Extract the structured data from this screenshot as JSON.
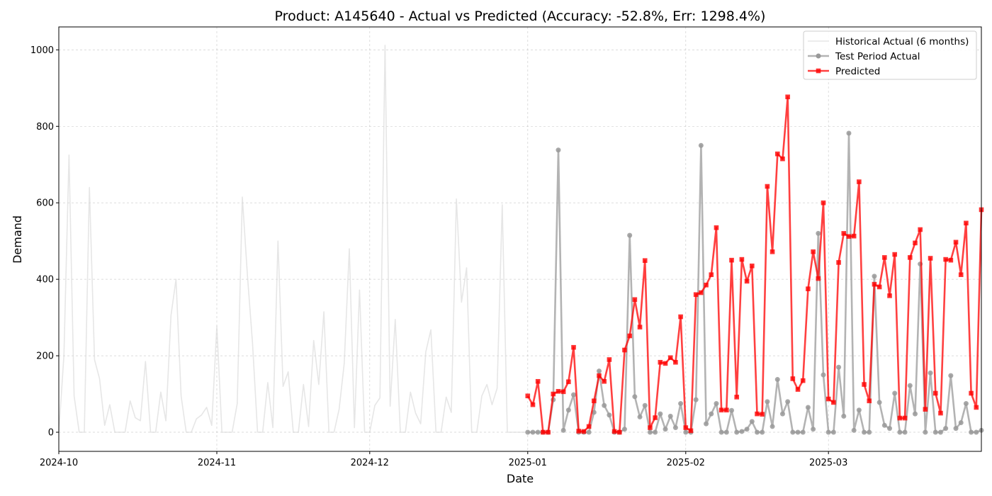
{
  "chart_data": {
    "type": "line",
    "title": "Product: A145640 - Actual vs Predicted (Accuracy: -52.8%, Err: 1298.4%)",
    "xlabel": "Date",
    "ylabel": "Demand",
    "xlim": [
      "2024-10-01",
      "2025-03-31"
    ],
    "ylim": [
      -50,
      1060
    ],
    "x_ticks": [
      "2024-10",
      "2024-11",
      "2024-12",
      "2025-01",
      "2025-02",
      "2025-03"
    ],
    "y_ticks": [
      0,
      200,
      400,
      600,
      800,
      1000
    ],
    "grid": true,
    "legend_position": "top-right",
    "series": [
      {
        "name": "Historical Actual (6 months)",
        "color": "#d9d9d9",
        "marker": "none",
        "start_date": "2024-10-01",
        "values": [
          0,
          200,
          725,
          95,
          0,
          0,
          640,
          190,
          140,
          18,
          72,
          0,
          0,
          0,
          82,
          38,
          30,
          185,
          0,
          0,
          105,
          30,
          305,
          400,
          95,
          0,
          0,
          35,
          45,
          65,
          18,
          278,
          0,
          0,
          0,
          75,
          615,
          410,
          235,
          0,
          0,
          130,
          12,
          500,
          120,
          158,
          0,
          0,
          125,
          15,
          240,
          125,
          315,
          0,
          0,
          60,
          180,
          480,
          12,
          372,
          0,
          0,
          70,
          90,
          1012,
          68,
          295,
          0,
          0,
          105,
          50,
          22,
          210,
          268,
          0,
          0,
          92,
          52,
          610,
          340,
          430,
          0,
          0,
          95,
          125,
          72,
          115,
          595,
          0,
          0,
          0,
          0,
          0
        ]
      },
      {
        "name": "Test Period Actual",
        "color": "#999999",
        "marker": "circle",
        "start_date": "2025-01-01",
        "values": [
          0,
          0,
          0,
          0,
          0,
          85,
          738,
          5,
          58,
          98,
          0,
          0,
          0,
          52,
          160,
          70,
          45,
          0,
          0,
          8,
          515,
          93,
          40,
          70,
          0,
          0,
          48,
          8,
          42,
          12,
          75,
          0,
          0,
          85,
          750,
          22,
          48,
          75,
          0,
          0,
          57,
          0,
          2,
          8,
          28,
          0,
          0,
          80,
          15,
          138,
          48,
          80,
          0,
          0,
          0,
          65,
          8,
          520,
          150,
          0,
          0,
          170,
          42,
          782,
          5,
          58,
          0,
          0,
          408,
          78,
          18,
          10,
          102,
          0,
          0,
          122,
          48,
          440,
          0,
          155,
          0,
          0,
          10,
          148,
          10,
          25,
          75,
          0,
          0,
          5
        ]
      },
      {
        "name": "Predicted",
        "color": "#ff0000",
        "marker": "square",
        "start_date": "2025-01-01",
        "values": [
          95,
          72,
          133,
          0,
          0,
          100,
          107,
          106,
          132,
          222,
          3,
          2,
          15,
          82,
          148,
          133,
          190,
          2,
          0,
          215,
          252,
          347,
          275,
          449,
          12,
          38,
          183,
          180,
          195,
          183,
          302,
          12,
          4,
          360,
          365,
          385,
          412,
          535,
          58,
          58,
          450,
          92,
          452,
          395,
          435,
          48,
          47,
          643,
          472,
          728,
          715,
          877,
          140,
          112,
          135,
          375,
          472,
          402,
          600,
          87,
          78,
          444,
          520,
          512,
          513,
          655,
          125,
          82,
          387,
          380,
          457,
          357,
          465,
          37,
          37,
          457,
          495,
          530,
          60,
          455,
          102,
          50,
          452,
          450,
          497,
          412,
          547,
          102,
          65,
          582
        ]
      }
    ]
  }
}
